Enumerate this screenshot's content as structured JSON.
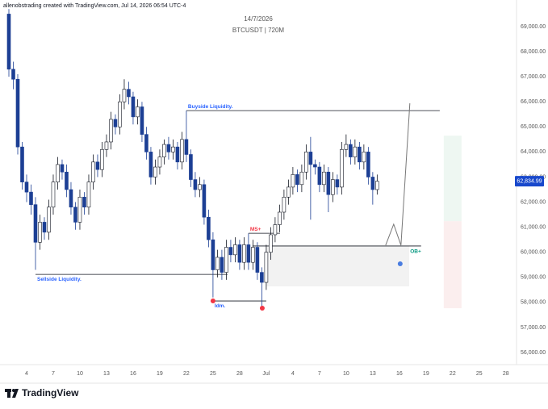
{
  "header": "allenobstrading created with TradingView.com, Jul 14, 2026 06:54 UTC-4",
  "footer": "TradingView",
  "chart_data": {
    "type": "candlestick",
    "title": "14/7/2026",
    "subtitle": "BTCUSDT | 720M",
    "x": [
      2,
      2.5,
      3,
      3.5,
      4,
      4.5,
      5,
      5.5,
      6,
      6.5,
      7,
      7.5,
      8,
      8.5,
      9,
      9.5,
      10,
      10.5,
      11,
      11.5,
      12,
      12.5,
      13,
      13.5,
      14,
      14.5,
      15,
      15.5,
      16,
      16.5,
      17,
      17.5,
      18,
      18.5,
      19,
      19.5,
      20,
      20.5,
      21,
      21.5,
      22,
      22.5,
      23,
      23.5,
      24,
      24.5,
      25,
      25.5,
      26,
      26.5,
      27,
      27.5,
      28,
      28.5,
      29,
      29.5,
      30,
      30.5,
      31,
      31.5,
      32,
      32.5,
      33,
      33.5,
      34,
      34.5,
      35,
      35.5,
      36,
      36.5,
      37,
      37.5,
      38,
      38.5,
      39,
      39.5,
      40,
      40.5,
      41,
      41.5,
      42,
      42.5,
      43,
      43.5
    ],
    "open": [
      69500,
      67300,
      66900,
      64200,
      62800,
      62400,
      61900,
      60400,
      61200,
      60800,
      61800,
      62800,
      63500,
      63200,
      62500,
      61800,
      61200,
      62200,
      61800,
      62800,
      63600,
      63300,
      64100,
      64400,
      65300,
      65000,
      66000,
      66500,
      66200,
      65400,
      65800,
      64700,
      64000,
      63000,
      63400,
      63800,
      64300,
      64000,
      64200,
      63600,
      64500,
      63900,
      62900,
      62500,
      62700,
      61400,
      60500,
      59300,
      59800,
      59200,
      60200,
      59900,
      60300,
      59600,
      60300,
      59600,
      60200,
      59200,
      58800,
      60000,
      60700,
      61100,
      61600,
      62200,
      62600,
      63100,
      62700,
      63200,
      64000,
      63500,
      63400,
      62700,
      63200,
      62300,
      62900,
      62600,
      64100,
      64300,
      63800,
      64200,
      63600,
      64000,
      63000,
      62500
    ],
    "high": [
      69700,
      67600,
      67100,
      64400,
      63100,
      62700,
      62200,
      61500,
      61400,
      62100,
      63100,
      63800,
      63700,
      63500,
      62800,
      62000,
      62500,
      62400,
      63100,
      63900,
      63900,
      64400,
      64700,
      65600,
      65500,
      66300,
      66900,
      66800,
      66400,
      66100,
      66000,
      65000,
      64200,
      63700,
      64100,
      64500,
      64600,
      64500,
      64400,
      64800,
      65650,
      64100,
      63200,
      63000,
      62900,
      61700,
      60800,
      60100,
      60100,
      60500,
      60500,
      60600,
      60500,
      60600,
      60750,
      60500,
      60400,
      59400,
      60300,
      61000,
      61400,
      61900,
      62500,
      62900,
      63400,
      63300,
      63500,
      64300,
      64600,
      63700,
      63600,
      63500,
      63400,
      63200,
      63100,
      64400,
      64700,
      64500,
      64500,
      64400,
      64300,
      64200,
      63200,
      63100
    ],
    "low": [
      67000,
      66500,
      63900,
      62500,
      62000,
      61500,
      59300,
      60100,
      60500,
      60500,
      61500,
      62500,
      62900,
      62200,
      61500,
      60900,
      60900,
      61500,
      61500,
      62500,
      63000,
      63000,
      63800,
      64100,
      64700,
      64700,
      65700,
      65900,
      65100,
      65100,
      64400,
      63700,
      62700,
      62700,
      63100,
      63500,
      63700,
      63700,
      63300,
      63300,
      63600,
      62600,
      62200,
      62200,
      61100,
      60200,
      58200,
      59000,
      58900,
      58900,
      59600,
      59600,
      59300,
      59300,
      59300,
      59300,
      58900,
      57770,
      58500,
      59700,
      60400,
      60800,
      61300,
      61900,
      62300,
      62400,
      62400,
      62900,
      61300,
      63100,
      62400,
      62400,
      61600,
      62000,
      62300,
      62300,
      63800,
      63500,
      63500,
      63300,
      63300,
      62700,
      61900,
      62300
    ],
    "close": [
      67300,
      66900,
      64200,
      62800,
      62400,
      61900,
      60400,
      61200,
      60800,
      61800,
      62800,
      63500,
      63200,
      62500,
      61800,
      61200,
      62200,
      61800,
      62800,
      63600,
      63300,
      64100,
      64400,
      65300,
      65000,
      66000,
      66500,
      66200,
      65400,
      65800,
      64700,
      64000,
      63000,
      63400,
      63800,
      64300,
      64000,
      64200,
      63600,
      64500,
      63900,
      62900,
      62500,
      62700,
      61400,
      60500,
      59300,
      59800,
      59200,
      60200,
      59900,
      60300,
      59600,
      60300,
      59600,
      60200,
      59200,
      58800,
      60000,
      60700,
      61100,
      61600,
      62200,
      62600,
      63100,
      62700,
      63200,
      64000,
      63500,
      63400,
      62700,
      63200,
      62300,
      62900,
      62600,
      64100,
      64300,
      63800,
      64200,
      63600,
      64000,
      63000,
      62500,
      62834.99
    ],
    "up_color": "#ffffff",
    "down_color": "#1c3f94",
    "wick_color": "#131722",
    "xlim": [
      1,
      59.2
    ],
    "ylim": [
      55520,
      70060
    ],
    "xticks": [
      4,
      7,
      10,
      13,
      16,
      19,
      22,
      25,
      28,
      {
        "value": 31,
        "label": "Jul"
      },
      {
        "value": 34,
        "label": "4"
      },
      {
        "value": 37,
        "label": "7"
      },
      {
        "value": 40,
        "label": "10"
      },
      {
        "value": 43,
        "label": "13"
      },
      {
        "value": 46,
        "label": "16"
      },
      {
        "value": 49,
        "label": "19"
      },
      {
        "value": 52,
        "label": "22"
      },
      {
        "value": 55,
        "label": "25"
      },
      {
        "value": 58,
        "label": "28"
      }
    ],
    "yticks": [
      {
        "value": 56000,
        "label": "56,000.00"
      },
      {
        "value": 57000,
        "label": "57,000.00"
      },
      {
        "value": 58000,
        "label": "58,000.00"
      },
      {
        "value": 59000,
        "label": "59,000.00"
      },
      {
        "value": 60000,
        "label": "60,000.00"
      },
      {
        "value": 61000,
        "label": "61,000.00"
      },
      {
        "value": 62000,
        "label": "62,000.00"
      },
      {
        "value": 63000,
        "label": "63,000.00"
      },
      {
        "value": 64000,
        "label": "64,000.00"
      },
      {
        "value": 65000,
        "label": "65,000.00"
      },
      {
        "value": 66000,
        "label": "66,000.00"
      },
      {
        "value": 67000,
        "label": "67,000.00"
      },
      {
        "value": 68000,
        "label": "68,000.00"
      },
      {
        "value": 69000,
        "label": "69,000.00"
      }
    ],
    "grid": false,
    "last_price": {
      "value": 62834.99,
      "label": "62,834.99",
      "color": "#1848cc"
    },
    "zones": [
      {
        "x": [
          31,
          47.1
        ],
        "values": [
          58640,
          60250
        ],
        "color": "#f2f2f2"
      },
      {
        "x": [
          51,
          53
        ],
        "values": [
          61240,
          64650
        ],
        "color": "#eef7f2"
      },
      {
        "x": [
          51,
          53
        ],
        "values": [
          57770,
          61240
        ],
        "color": "#fbeeee"
      }
    ],
    "levels": [
      {
        "label": "Buyside Liquidity.",
        "value": 65650,
        "x": [
          22,
          50.55
        ],
        "color": "#2962ff",
        "label_side": "above"
      },
      {
        "label": "Sellside Liquidity.",
        "value": 59120,
        "x": [
          5,
          26.64
        ],
        "color": "#2962ff",
        "label_side": "below"
      },
      {
        "label": "Idm.",
        "value": 58060,
        "x": [
          25,
          31
        ],
        "color": "#2962ff",
        "label_side": "below"
      },
      {
        "label": "MS+",
        "value": 60760,
        "x": [
          29,
          32.55
        ],
        "color": "#f23645",
        "label_side": "above"
      },
      {
        "label": "OB+",
        "value": 60250,
        "x": [
          29.45,
          48.45
        ],
        "color": "#089981",
        "label_side": "end"
      }
    ],
    "projection": {
      "x": [
        44.45,
        45.36,
        46.18,
        47.18
      ],
      "values": [
        60280,
        61120,
        60280,
        65940
      ],
      "color": "#777777"
    },
    "markers": [
      {
        "x": 25,
        "value": 58060,
        "color": "#f23645"
      },
      {
        "x": 30.55,
        "value": 57770,
        "color": "#f23645"
      },
      {
        "x": 46.09,
        "value": 59540,
        "color": "#4a7de0"
      }
    ]
  }
}
